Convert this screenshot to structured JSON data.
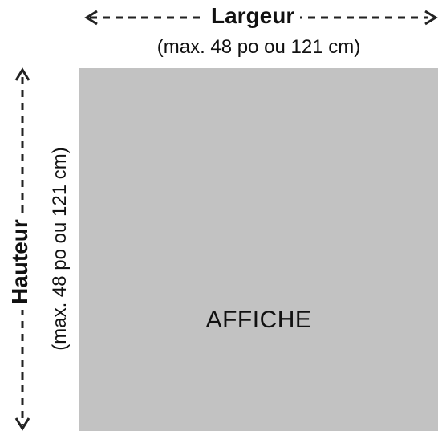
{
  "dimensions": {
    "width": {
      "label": "Largeur",
      "limit": "(max. 48 po ou 121 cm)"
    },
    "height": {
      "label": "Hauteur",
      "limit": "(max. 48 po ou 121 cm)"
    }
  },
  "poster": {
    "label": "AFFICHE",
    "color": "#c2c2c2"
  },
  "colors": {
    "text": "#111111",
    "arrow": "#222222",
    "background": "#ffffff"
  }
}
